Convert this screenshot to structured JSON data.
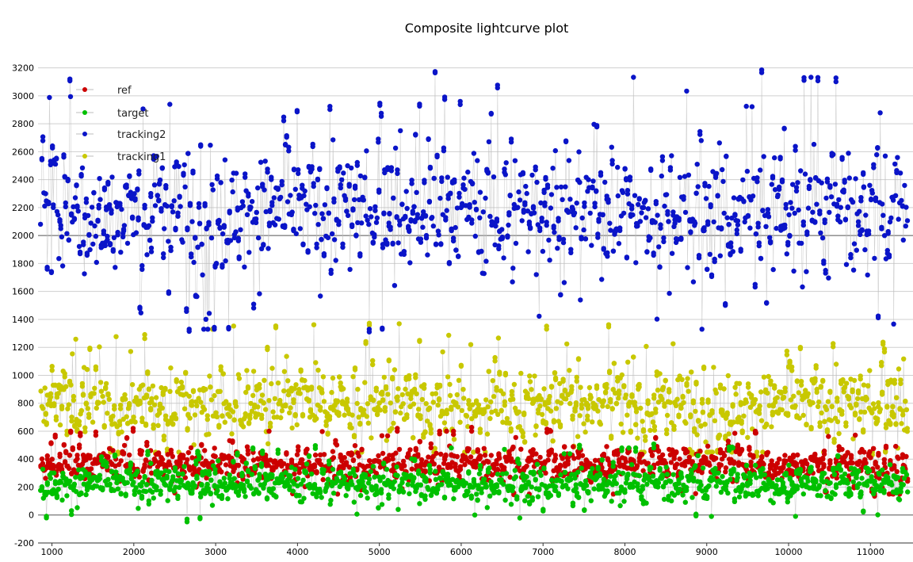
{
  "chart_data": {
    "type": "scatter",
    "title": "Composite lightcurve plot",
    "xlabel": "",
    "ylabel": "",
    "xlim": [
      830,
      11520
    ],
    "ylim": [
      -200,
      3300
    ],
    "x_ticks": [
      1000,
      2000,
      3000,
      4000,
      5000,
      6000,
      7000,
      8000,
      9000,
      10000,
      11000
    ],
    "y_ticks": [
      -200,
      0,
      200,
      400,
      600,
      800,
      1000,
      1200,
      1400,
      1600,
      1800,
      2000,
      2200,
      2400,
      2600,
      2800,
      3000,
      3200
    ],
    "grid": true,
    "legend_position": "top-left",
    "series": [
      {
        "name": "ref",
        "color": "#cc0000",
        "x_range": [
          860,
          11460
        ],
        "mean": 370,
        "spread": 90,
        "min": 150,
        "max": 600
      },
      {
        "name": "target",
        "color": "#00c000",
        "x_range": [
          860,
          11460
        ],
        "mean": 230,
        "spread": 95,
        "min": -50,
        "max": 480
      },
      {
        "name": "tracking2",
        "color": "#0a14c8",
        "x_range": [
          860,
          11460
        ],
        "mean": 2200,
        "spread": 330,
        "min": 1330,
        "max": 3210
      },
      {
        "name": "tracking1",
        "color": "#c8c800",
        "x_range": [
          860,
          11460
        ],
        "mean": 800,
        "spread": 190,
        "min": 450,
        "max": 1470
      }
    ]
  }
}
